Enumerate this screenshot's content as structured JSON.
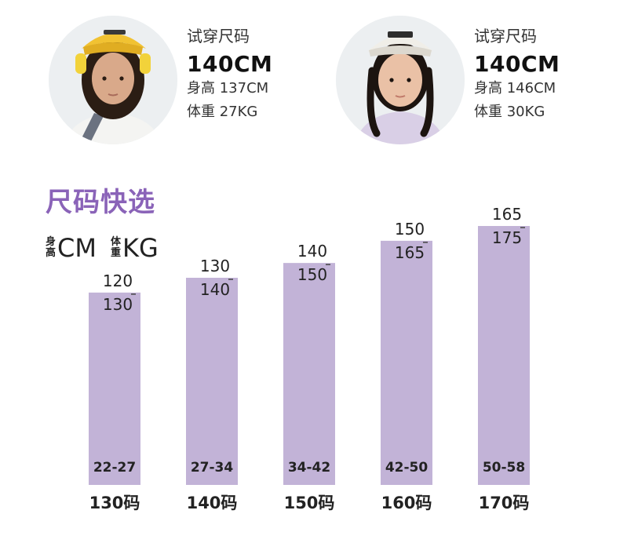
{
  "models": [
    {
      "fit_label": "试穿尺码",
      "fit_size": "140CM",
      "height_text": "身高 137CM",
      "weight_text": "体重  27KG",
      "avatar_colors": {
        "hat": "#f1c232",
        "hair": "#2b1d14",
        "skin": "#d9a98a",
        "shirt": "#f4f4f2",
        "headphones": "#f2d23a"
      }
    },
    {
      "fit_label": "试穿尺码",
      "fit_size": "140CM",
      "height_text": "身高 146CM",
      "weight_text": "体重  30KG",
      "avatar_colors": {
        "hat": "#f0eee8",
        "hair": "#1c1410",
        "skin": "#eac1a6",
        "shirt": "#d9cfe6"
      }
    }
  ],
  "section_title": "尺码快选",
  "legend": {
    "height_chars": [
      "身",
      "高"
    ],
    "height_unit": "CM",
    "weight_chars": [
      "体",
      "重"
    ],
    "weight_unit": "KG"
  },
  "colors": {
    "bar": "#c2b3d7",
    "title": "#8a63b8",
    "text": "#222222"
  },
  "chart_data": {
    "type": "bar",
    "categories": [
      "130码",
      "140码",
      "150码",
      "160码",
      "170码"
    ],
    "height_ranges": [
      [
        120,
        130
      ],
      [
        130,
        140
      ],
      [
        140,
        150
      ],
      [
        150,
        165
      ],
      [
        165,
        175
      ]
    ],
    "weight_ranges": [
      "22-27",
      "27-34",
      "34-42",
      "42-50",
      "50-58"
    ],
    "value_axis": "bar top = upper height (CM)",
    "ylim": [
      0,
      175
    ]
  }
}
